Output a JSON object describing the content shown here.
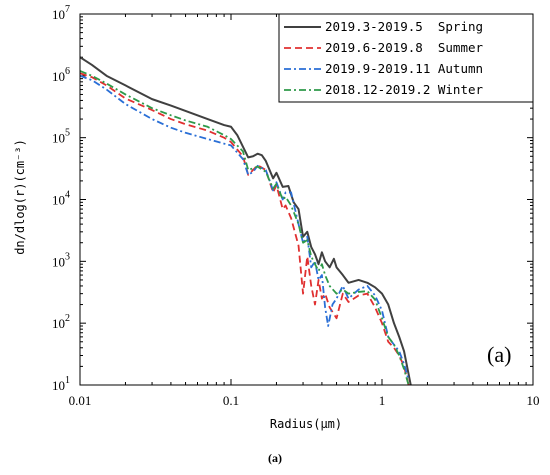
{
  "chart_data": {
    "type": "line",
    "panel_label": "(a)",
    "caption": "(a)",
    "xlabel": "Radius(μm)",
    "ylabel": "dn/dlog(r)(cm⁻³)",
    "xscale": "log",
    "yscale": "log",
    "xlim": [
      0.01,
      10
    ],
    "ylim": [
      10,
      10000000
    ],
    "x_ticks": [
      {
        "value": 0.01,
        "label": "0.01"
      },
      {
        "value": 0.1,
        "label": "0.1"
      },
      {
        "value": 1,
        "label": "1"
      },
      {
        "value": 10,
        "label": "10"
      }
    ],
    "y_ticks": [
      {
        "value": 10,
        "base": "10",
        "exp": "1"
      },
      {
        "value": 100,
        "base": "10",
        "exp": "2"
      },
      {
        "value": 1000,
        "base": "10",
        "exp": "3"
      },
      {
        "value": 10000,
        "base": "10",
        "exp": "4"
      },
      {
        "value": 100000,
        "base": "10",
        "exp": "5"
      },
      {
        "value": 1000000,
        "base": "10",
        "exp": "6"
      },
      {
        "value": 10000000,
        "base": "10",
        "exp": "7"
      }
    ],
    "legend_position": "top-right",
    "series": [
      {
        "name": "2019.3-2019.5  Spring",
        "color": "#404040",
        "dash": "solid",
        "points": [
          [
            0.01,
            2000000
          ],
          [
            0.012,
            1500000
          ],
          [
            0.015,
            1000000
          ],
          [
            0.02,
            700000
          ],
          [
            0.03,
            420000
          ],
          [
            0.04,
            330000
          ],
          [
            0.05,
            270000
          ],
          [
            0.07,
            200000
          ],
          [
            0.09,
            160000
          ],
          [
            0.1,
            150000
          ],
          [
            0.11,
            110000
          ],
          [
            0.13,
            48000
          ],
          [
            0.14,
            50000
          ],
          [
            0.15,
            55000
          ],
          [
            0.16,
            52000
          ],
          [
            0.17,
            42000
          ],
          [
            0.19,
            22000
          ],
          [
            0.2,
            27000
          ],
          [
            0.22,
            16000
          ],
          [
            0.24,
            16500
          ],
          [
            0.26,
            9000
          ],
          [
            0.28,
            7000
          ],
          [
            0.3,
            2500
          ],
          [
            0.32,
            3000
          ],
          [
            0.34,
            1700
          ],
          [
            0.36,
            1300
          ],
          [
            0.38,
            900
          ],
          [
            0.4,
            1400
          ],
          [
            0.42,
            1000
          ],
          [
            0.45,
            800
          ],
          [
            0.48,
            1100
          ],
          [
            0.5,
            800
          ],
          [
            0.55,
            600
          ],
          [
            0.6,
            450
          ],
          [
            0.7,
            500
          ],
          [
            0.8,
            450
          ],
          [
            0.9,
            380
          ],
          [
            1.0,
            300
          ],
          [
            1.1,
            200
          ],
          [
            1.2,
            100
          ],
          [
            1.3,
            60
          ],
          [
            1.4,
            35
          ],
          [
            1.5,
            15
          ],
          [
            1.55,
            10
          ]
        ]
      },
      {
        "name": "2019.6-2019.8  Summer",
        "color": "#e03030",
        "dash": "dashed",
        "points": [
          [
            0.01,
            1100000
          ],
          [
            0.012,
            950000
          ],
          [
            0.015,
            700000
          ],
          [
            0.02,
            430000
          ],
          [
            0.03,
            280000
          ],
          [
            0.04,
            200000
          ],
          [
            0.05,
            165000
          ],
          [
            0.07,
            130000
          ],
          [
            0.09,
            100000
          ],
          [
            0.1,
            85000
          ],
          [
            0.12,
            50000
          ],
          [
            0.13,
            25000
          ],
          [
            0.14,
            30000
          ],
          [
            0.15,
            36000
          ],
          [
            0.17,
            30000
          ],
          [
            0.19,
            13000
          ],
          [
            0.2,
            17000
          ],
          [
            0.22,
            7000
          ],
          [
            0.23,
            8000
          ],
          [
            0.25,
            5000
          ],
          [
            0.28,
            1800
          ],
          [
            0.3,
            300
          ],
          [
            0.32,
            1200
          ],
          [
            0.34,
            400
          ],
          [
            0.36,
            200
          ],
          [
            0.38,
            500
          ],
          [
            0.4,
            250
          ],
          [
            0.42,
            300
          ],
          [
            0.45,
            180
          ],
          [
            0.5,
            120
          ],
          [
            0.55,
            300
          ],
          [
            0.6,
            220
          ],
          [
            0.7,
            280
          ],
          [
            0.8,
            300
          ],
          [
            0.9,
            180
          ],
          [
            1.0,
            100
          ],
          [
            1.1,
            50
          ],
          [
            1.2,
            40
          ],
          [
            1.3,
            30
          ],
          [
            1.4,
            20
          ],
          [
            1.5,
            10
          ]
        ]
      },
      {
        "name": "2019.9-2019.11 Autumn",
        "color": "#2a6fd6",
        "dash": "dashdot",
        "points": [
          [
            0.01,
            1000000
          ],
          [
            0.012,
            850000
          ],
          [
            0.015,
            600000
          ],
          [
            0.02,
            350000
          ],
          [
            0.03,
            200000
          ],
          [
            0.04,
            145000
          ],
          [
            0.05,
            120000
          ],
          [
            0.07,
            95000
          ],
          [
            0.09,
            80000
          ],
          [
            0.1,
            75000
          ],
          [
            0.12,
            45000
          ],
          [
            0.13,
            25000
          ],
          [
            0.14,
            28000
          ],
          [
            0.15,
            35000
          ],
          [
            0.17,
            30000
          ],
          [
            0.19,
            14000
          ],
          [
            0.2,
            19000
          ],
          [
            0.22,
            10000
          ],
          [
            0.23,
            13000
          ],
          [
            0.25,
            13000
          ],
          [
            0.28,
            4000
          ],
          [
            0.3,
            2000
          ],
          [
            0.32,
            2500
          ],
          [
            0.34,
            800
          ],
          [
            0.36,
            1000
          ],
          [
            0.38,
            500
          ],
          [
            0.4,
            600
          ],
          [
            0.42,
            180
          ],
          [
            0.44,
            90
          ],
          [
            0.47,
            200
          ],
          [
            0.5,
            250
          ],
          [
            0.55,
            400
          ],
          [
            0.6,
            250
          ],
          [
            0.7,
            350
          ],
          [
            0.8,
            400
          ],
          [
            0.9,
            280
          ],
          [
            1.0,
            160
          ],
          [
            1.1,
            60
          ],
          [
            1.2,
            45
          ],
          [
            1.3,
            35
          ],
          [
            1.4,
            22
          ],
          [
            1.5,
            12
          ]
        ]
      },
      {
        "name": "2018.12-2019.2 Winter",
        "color": "#2e9a4a",
        "dash": "dashdot",
        "points": [
          [
            0.01,
            1200000
          ],
          [
            0.012,
            1000000
          ],
          [
            0.015,
            750000
          ],
          [
            0.02,
            500000
          ],
          [
            0.03,
            300000
          ],
          [
            0.04,
            230000
          ],
          [
            0.05,
            190000
          ],
          [
            0.07,
            150000
          ],
          [
            0.09,
            110000
          ],
          [
            0.1,
            95000
          ],
          [
            0.12,
            60000
          ],
          [
            0.13,
            30000
          ],
          [
            0.14,
            32000
          ],
          [
            0.15,
            34000
          ],
          [
            0.17,
            28000
          ],
          [
            0.19,
            15000
          ],
          [
            0.2,
            18000
          ],
          [
            0.22,
            10000
          ],
          [
            0.23,
            11000
          ],
          [
            0.25,
            8000
          ],
          [
            0.28,
            4000
          ],
          [
            0.3,
            2000
          ],
          [
            0.32,
            2200
          ],
          [
            0.34,
            1200
          ],
          [
            0.36,
            900
          ],
          [
            0.38,
            700
          ],
          [
            0.4,
            900
          ],
          [
            0.42,
            600
          ],
          [
            0.45,
            400
          ],
          [
            0.5,
            300
          ],
          [
            0.55,
            350
          ],
          [
            0.6,
            300
          ],
          [
            0.7,
            320
          ],
          [
            0.8,
            330
          ],
          [
            0.9,
            240
          ],
          [
            1.0,
            120
          ],
          [
            1.1,
            60
          ],
          [
            1.2,
            45
          ],
          [
            1.3,
            30
          ],
          [
            1.4,
            18
          ],
          [
            1.5,
            10
          ]
        ]
      }
    ]
  }
}
